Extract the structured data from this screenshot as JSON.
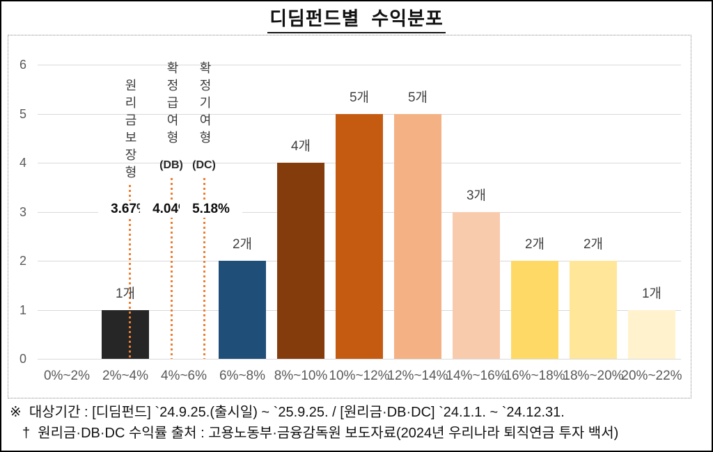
{
  "header": {
    "title": "디딤펀드별  수익분포"
  },
  "chart_data": {
    "type": "bar",
    "title": "디딤펀드별 수익분포",
    "categories": [
      "0%~2%",
      "2%~4%",
      "4%~6%",
      "6%~8%",
      "8%~10%",
      "10%~12%",
      "12%~14%",
      "14%~16%",
      "16%~18%",
      "18%~20%",
      "20%~22%"
    ],
    "values": [
      0,
      1,
      0,
      2,
      4,
      5,
      5,
      3,
      2,
      2,
      1
    ],
    "bar_labels": [
      "",
      "1개",
      "",
      "2개",
      "4개",
      "5개",
      "5개",
      "3개",
      "2개",
      "2개",
      "1개"
    ],
    "bar_colors": [
      "",
      "#262626",
      "",
      "#1F4E79",
      "#843C0C",
      "#C55A11",
      "#F4B183",
      "#F8CBAD",
      "#FFD966",
      "#FFE699",
      "#FFF2CC"
    ],
    "xlabel": "",
    "ylabel": "",
    "ylim": [
      0,
      6
    ],
    "yticks": [
      "0",
      "1",
      "2",
      "3",
      "4",
      "5",
      "6"
    ],
    "grid": true,
    "legend": "none",
    "gridline_color": "#d9d9d9",
    "reference_line_color": "#ED7D31",
    "reference_lines": [
      {
        "name": "원리금보장형",
        "sublabel": "",
        "value_label": "3.67%",
        "value": 3.67
      },
      {
        "name": "확정급여형",
        "sublabel": "(DB)",
        "value_label": "4.04%",
        "value": 4.04
      },
      {
        "name": "확정기여형",
        "sublabel": "(DC)",
        "value_label": "5.18%",
        "value": 5.18
      }
    ]
  },
  "footer": {
    "line1": "※  대상기간 : [디딤펀드] `24.9.25.(출시일) ~ `25.9.25. / [원리금·DB·DC] `24.1.1. ~ `24.12.31.",
    "line2": "†  원리금·DB·DC 수익률 출처 : 고용노동부·금융감독원 보도자료(2024년 우리나라 퇴직연금 투자 백서)"
  }
}
